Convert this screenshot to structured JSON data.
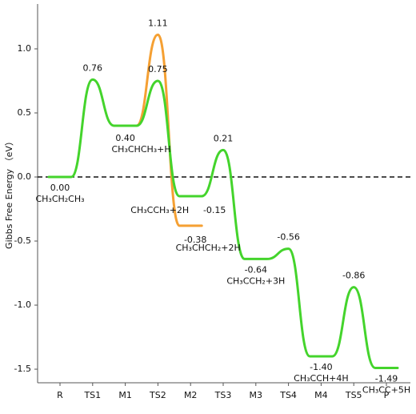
{
  "chart_data": {
    "type": "energy-profile",
    "y_label": "Gibbs Free Energy （eV）",
    "categories": [
      "R",
      "TS1",
      "M1",
      "TS2",
      "M2",
      "TS3",
      "M3",
      "TS4",
      "M4",
      "TS5",
      "P"
    ],
    "series": [
      {
        "color": "#f5a033",
        "values": [
          null,
          null,
          0.4,
          1.11,
          -0.38,
          null,
          null,
          null,
          null,
          null,
          null
        ],
        "value_labels": [
          null,
          null,
          null,
          "1.11",
          "-0.38",
          null,
          null,
          null,
          null,
          null,
          null
        ],
        "point_labels": [
          null,
          null,
          null,
          null,
          "CH₃CHCH₂+2H",
          null,
          null,
          null,
          null,
          null,
          null
        ]
      },
      {
        "color": "#44d42c",
        "values": [
          0.0,
          0.76,
          0.4,
          0.75,
          -0.15,
          0.21,
          -0.64,
          -0.56,
          -1.4,
          -0.86,
          -1.49
        ],
        "value_labels": [
          "0.00",
          "0.76",
          "0.40",
          "0.75",
          "-0.15",
          "0.21",
          "-0.64",
          "-0.56",
          "-1.40",
          "-0.86",
          "-1.49"
        ],
        "point_labels": [
          "CH₃CH₂CH₃",
          null,
          "CH₃CHCH₃+H",
          null,
          "CH₃CCH₃+2H",
          null,
          "CH₃CCH₂+3H",
          null,
          "CH₃CCH+4H",
          null,
          "CH₃CC+5H"
        ]
      }
    ],
    "ylim": [
      -1.606,
      1.35
    ],
    "yticks": [
      {
        "value": -1.5,
        "label": "-1.5"
      },
      {
        "value": -1.0,
        "label": "-1.0"
      },
      -0.5,
      {
        "value": 0.0,
        "label": "0.0"
      },
      0.5,
      {
        "value": 1.0,
        "label": "1.0"
      }
    ],
    "zero_line": true
  }
}
